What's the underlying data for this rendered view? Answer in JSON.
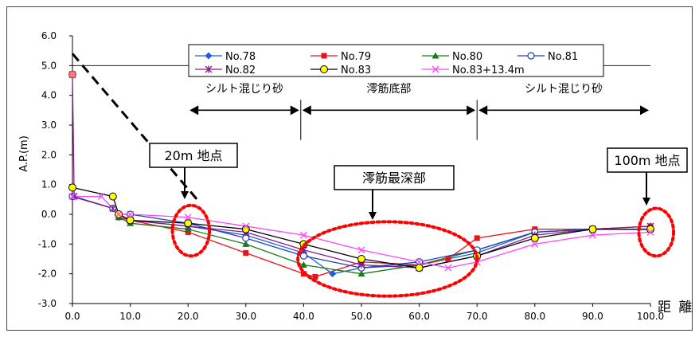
{
  "chart_data": {
    "type": "line",
    "title": "",
    "ylabel": "A.P.(m)",
    "xlabel": "距 離",
    "xlim": [
      0,
      100
    ],
    "ylim": [
      -3,
      6
    ],
    "x_ticks": [
      "0.0",
      "10.0",
      "20.0",
      "30.0",
      "40.0",
      "50.0",
      "60.0",
      "70.0",
      "80.0",
      "90.0",
      "100.0"
    ],
    "y_ticks": [
      "6.0",
      "5.0",
      "4.0",
      "3.0",
      "2.0",
      "1.0",
      "0.0",
      "-1.0",
      "-2.0",
      "-3.0"
    ],
    "grid": false,
    "legend_position": "top",
    "series": [
      {
        "name": "No.78",
        "color": "#1f5fd6",
        "marker": "diamond",
        "points": [
          [
            0,
            0.6
          ],
          [
            7,
            0.2
          ],
          [
            8,
            -0.1
          ],
          [
            10,
            -0.2
          ],
          [
            20,
            -0.4
          ],
          [
            30,
            -0.7
          ],
          [
            40,
            -1.3
          ],
          [
            45,
            -2.0
          ],
          [
            50,
            -1.8
          ],
          [
            60,
            -1.7
          ],
          [
            70,
            -1.3
          ],
          [
            80,
            -0.6
          ],
          [
            90,
            -0.5
          ],
          [
            100,
            -0.5
          ]
        ]
      },
      {
        "name": "No.79",
        "color": "#e8141d",
        "marker": "square",
        "points": [
          [
            0,
            0.6
          ],
          [
            7,
            0.2
          ],
          [
            8,
            -0.1
          ],
          [
            10,
            -0.2
          ],
          [
            20,
            -0.6
          ],
          [
            30,
            -1.3
          ],
          [
            40,
            -2.0
          ],
          [
            42,
            -2.1
          ],
          [
            50,
            -1.6
          ],
          [
            60,
            -1.7
          ],
          [
            65,
            -1.5
          ],
          [
            70,
            -0.8
          ],
          [
            80,
            -0.5
          ],
          [
            90,
            -0.5
          ],
          [
            100,
            -0.4
          ]
        ]
      },
      {
        "name": "No.80",
        "color": "#1a7a1a",
        "marker": "triangle",
        "points": [
          [
            0,
            0.6
          ],
          [
            7,
            0.2
          ],
          [
            8,
            -0.1
          ],
          [
            10,
            -0.3
          ],
          [
            20,
            -0.5
          ],
          [
            30,
            -1.0
          ],
          [
            40,
            -1.7
          ],
          [
            50,
            -2.0
          ],
          [
            60,
            -1.7
          ],
          [
            70,
            -1.2
          ],
          [
            80,
            -0.6
          ],
          [
            90,
            -0.5
          ],
          [
            100,
            -0.5
          ]
        ]
      },
      {
        "name": "No.81",
        "color": "#1f3fbf",
        "marker": "circle-open",
        "points": [
          [
            0,
            0.6
          ],
          [
            7,
            0.2
          ],
          [
            8,
            0.0
          ],
          [
            10,
            0.0
          ],
          [
            20,
            -0.3
          ],
          [
            30,
            -0.8
          ],
          [
            40,
            -1.4
          ],
          [
            50,
            -1.8
          ],
          [
            60,
            -1.6
          ],
          [
            70,
            -1.2
          ],
          [
            80,
            -0.6
          ],
          [
            90,
            -0.5
          ],
          [
            100,
            -0.5
          ]
        ]
      },
      {
        "name": "No.82",
        "color": "#8b1a8b",
        "marker": "star",
        "points": [
          [
            0,
            4.7
          ],
          [
            0.3,
            0.6
          ],
          [
            7,
            0.2
          ],
          [
            8,
            0.0
          ],
          [
            10,
            -0.2
          ],
          [
            20,
            -0.4
          ],
          [
            30,
            -0.6
          ],
          [
            40,
            -1.2
          ],
          [
            50,
            -1.7
          ],
          [
            60,
            -1.8
          ],
          [
            70,
            -1.4
          ],
          [
            80,
            -0.7
          ],
          [
            90,
            -0.5
          ],
          [
            100,
            -0.4
          ]
        ]
      },
      {
        "name": "No.83",
        "color": "#000000",
        "marker": "circle-yellow",
        "points": [
          [
            0,
            0.9
          ],
          [
            7,
            0.6
          ],
          [
            8,
            0.0
          ],
          [
            10,
            -0.2
          ],
          [
            20,
            -0.3
          ],
          [
            30,
            -0.5
          ],
          [
            40,
            -1.0
          ],
          [
            50,
            -1.5
          ],
          [
            60,
            -1.8
          ],
          [
            70,
            -1.4
          ],
          [
            80,
            -0.8
          ],
          [
            90,
            -0.5
          ],
          [
            100,
            -0.5
          ]
        ]
      },
      {
        "name": "No.83+13.4m",
        "color": "#ff44ff",
        "marker": "x",
        "points": [
          [
            0,
            0.6
          ],
          [
            5,
            0.6
          ],
          [
            8,
            0.0
          ],
          [
            10,
            0.0
          ],
          [
            20,
            -0.1
          ],
          [
            30,
            -0.4
          ],
          [
            40,
            -0.7
          ],
          [
            50,
            -1.2
          ],
          [
            60,
            -1.6
          ],
          [
            65,
            -1.8
          ],
          [
            70,
            -1.6
          ],
          [
            80,
            -1.0
          ],
          [
            90,
            -0.7
          ],
          [
            100,
            -0.6
          ]
        ]
      }
    ],
    "dashed_line": [
      [
        0,
        5.4
      ],
      [
        22,
        0.4
      ]
    ],
    "hline_y": 5.0,
    "vdividers": [
      39.5,
      70.0
    ],
    "zones": [
      {
        "label": "シルト混じり砂",
        "from": 20,
        "to": 39.5
      },
      {
        "label": "澪筋底部",
        "from": 39.5,
        "to": 70
      },
      {
        "label": "シルト混じり砂",
        "from": 70,
        "to": 100
      }
    ],
    "callouts": [
      {
        "label": "20m 地点",
        "at": [
          20,
          0.3
        ]
      },
      {
        "label": "澪筋最深部",
        "at": [
          54,
          -0.15
        ]
      },
      {
        "label": "100m 地点",
        "at": [
          100,
          -0.3
        ]
      }
    ],
    "ellipses": [
      {
        "cx": 20.5,
        "cy": -0.55,
        "rx": 3.2,
        "ry": 0.85
      },
      {
        "cx": 54.5,
        "cy": -1.5,
        "rx": 15.5,
        "ry": 1.25
      },
      {
        "cx": 101,
        "cy": -0.6,
        "rx": 3,
        "ry": 0.8
      }
    ]
  }
}
